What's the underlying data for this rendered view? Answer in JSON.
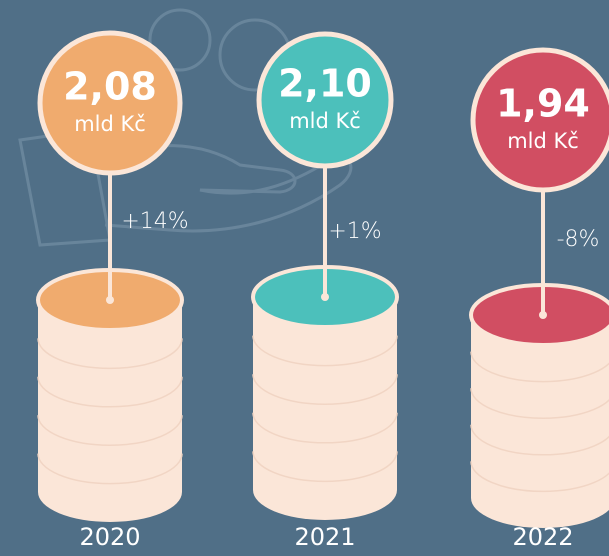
{
  "items": [
    {
      "value": "2,08",
      "unit": "mld Kč",
      "change": "+14%",
      "year": "2020",
      "color": "#f0ab6e"
    },
    {
      "value": "2,10",
      "unit": "mld Kč",
      "change": "+1%",
      "year": "2021",
      "color": "#4cc0bb"
    },
    {
      "value": "1,94",
      "unit": "mld Kč",
      "change": "-8%",
      "year": "2022",
      "color": "#d14e62"
    }
  ]
}
